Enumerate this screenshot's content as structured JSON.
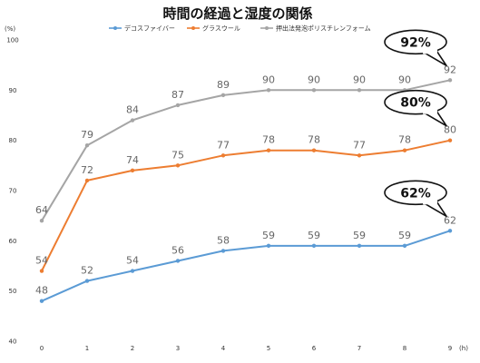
{
  "chart_data": {
    "type": "line",
    "title": "時間の経過と湿度の関係",
    "xlabel": "(h)",
    "ylabel": "(%)",
    "x": [
      0,
      1,
      2,
      3,
      4,
      5,
      6,
      7,
      8,
      9
    ],
    "xlim": [
      0,
      9
    ],
    "ylim": [
      40,
      100
    ],
    "yticks": [
      40,
      50,
      60,
      70,
      80,
      90,
      100
    ],
    "grid": false,
    "legend": "top",
    "series": [
      {
        "name": "デコスファイバー",
        "color": "#5b9bd5",
        "values": [
          48,
          52,
          54,
          56,
          58,
          59,
          59,
          59,
          59,
          62
        ]
      },
      {
        "name": "グラスウール",
        "color": "#ed7d31",
        "values": [
          54,
          72,
          74,
          75,
          77,
          78,
          78,
          77,
          78,
          80
        ]
      },
      {
        "name": "押出法発泡ポリスチレンフォーム",
        "color": "#a5a5a5",
        "values": [
          64,
          79,
          84,
          87,
          89,
          90,
          90,
          90,
          90,
          92
        ]
      }
    ],
    "annotations": [
      {
        "text": "92%",
        "series": 2
      },
      {
        "text": "80%",
        "series": 1
      },
      {
        "text": "62%",
        "series": 0
      }
    ]
  }
}
